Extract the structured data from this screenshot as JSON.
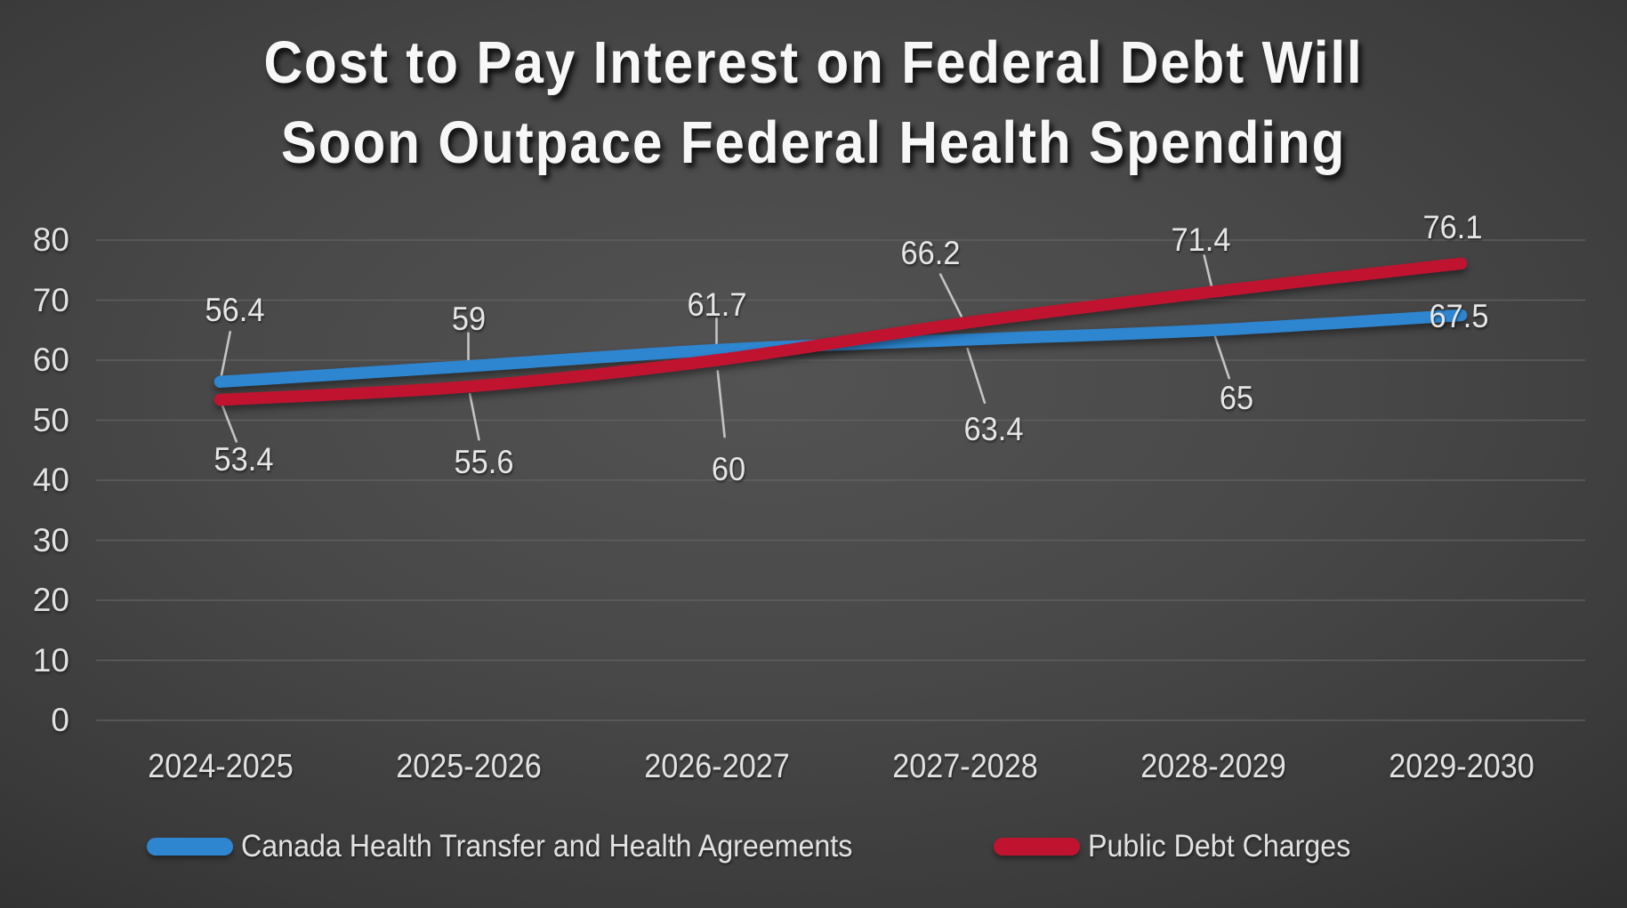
{
  "title": {
    "line1": "Cost to Pay Interest on Federal Debt Will",
    "line2": "Soon Outpace Federal Health Spending"
  },
  "chart_data": {
    "type": "line",
    "title": "Cost to Pay Interest on Federal Debt Will Soon Outpace Federal Health Spending",
    "categories": [
      "2024-2025",
      "2025-2026",
      "2026-2027",
      "2027-2028",
      "2028-2029",
      "2029-2030"
    ],
    "series": [
      {
        "name": "Canada Health Transfer and Health Agreements",
        "color": "#2E86D0",
        "values": [
          56.4,
          59,
          61.7,
          63.4,
          65,
          67.5
        ]
      },
      {
        "name": "Public Debt Charges",
        "color": "#C01330",
        "values": [
          53.4,
          55.6,
          60,
          66.2,
          71.4,
          76.1
        ]
      }
    ],
    "ylim": [
      0,
      80
    ],
    "yticks": [
      80,
      70,
      60,
      50,
      40,
      30,
      20,
      10,
      0
    ],
    "grid": true,
    "smooth": true,
    "data_labels": true,
    "legend_position": "bottom"
  },
  "colors": {
    "gridline": "#636363",
    "leader_line": "#C4C4C4",
    "axis_text": "#E2E2E2",
    "title_text": "#F7F7F7"
  }
}
